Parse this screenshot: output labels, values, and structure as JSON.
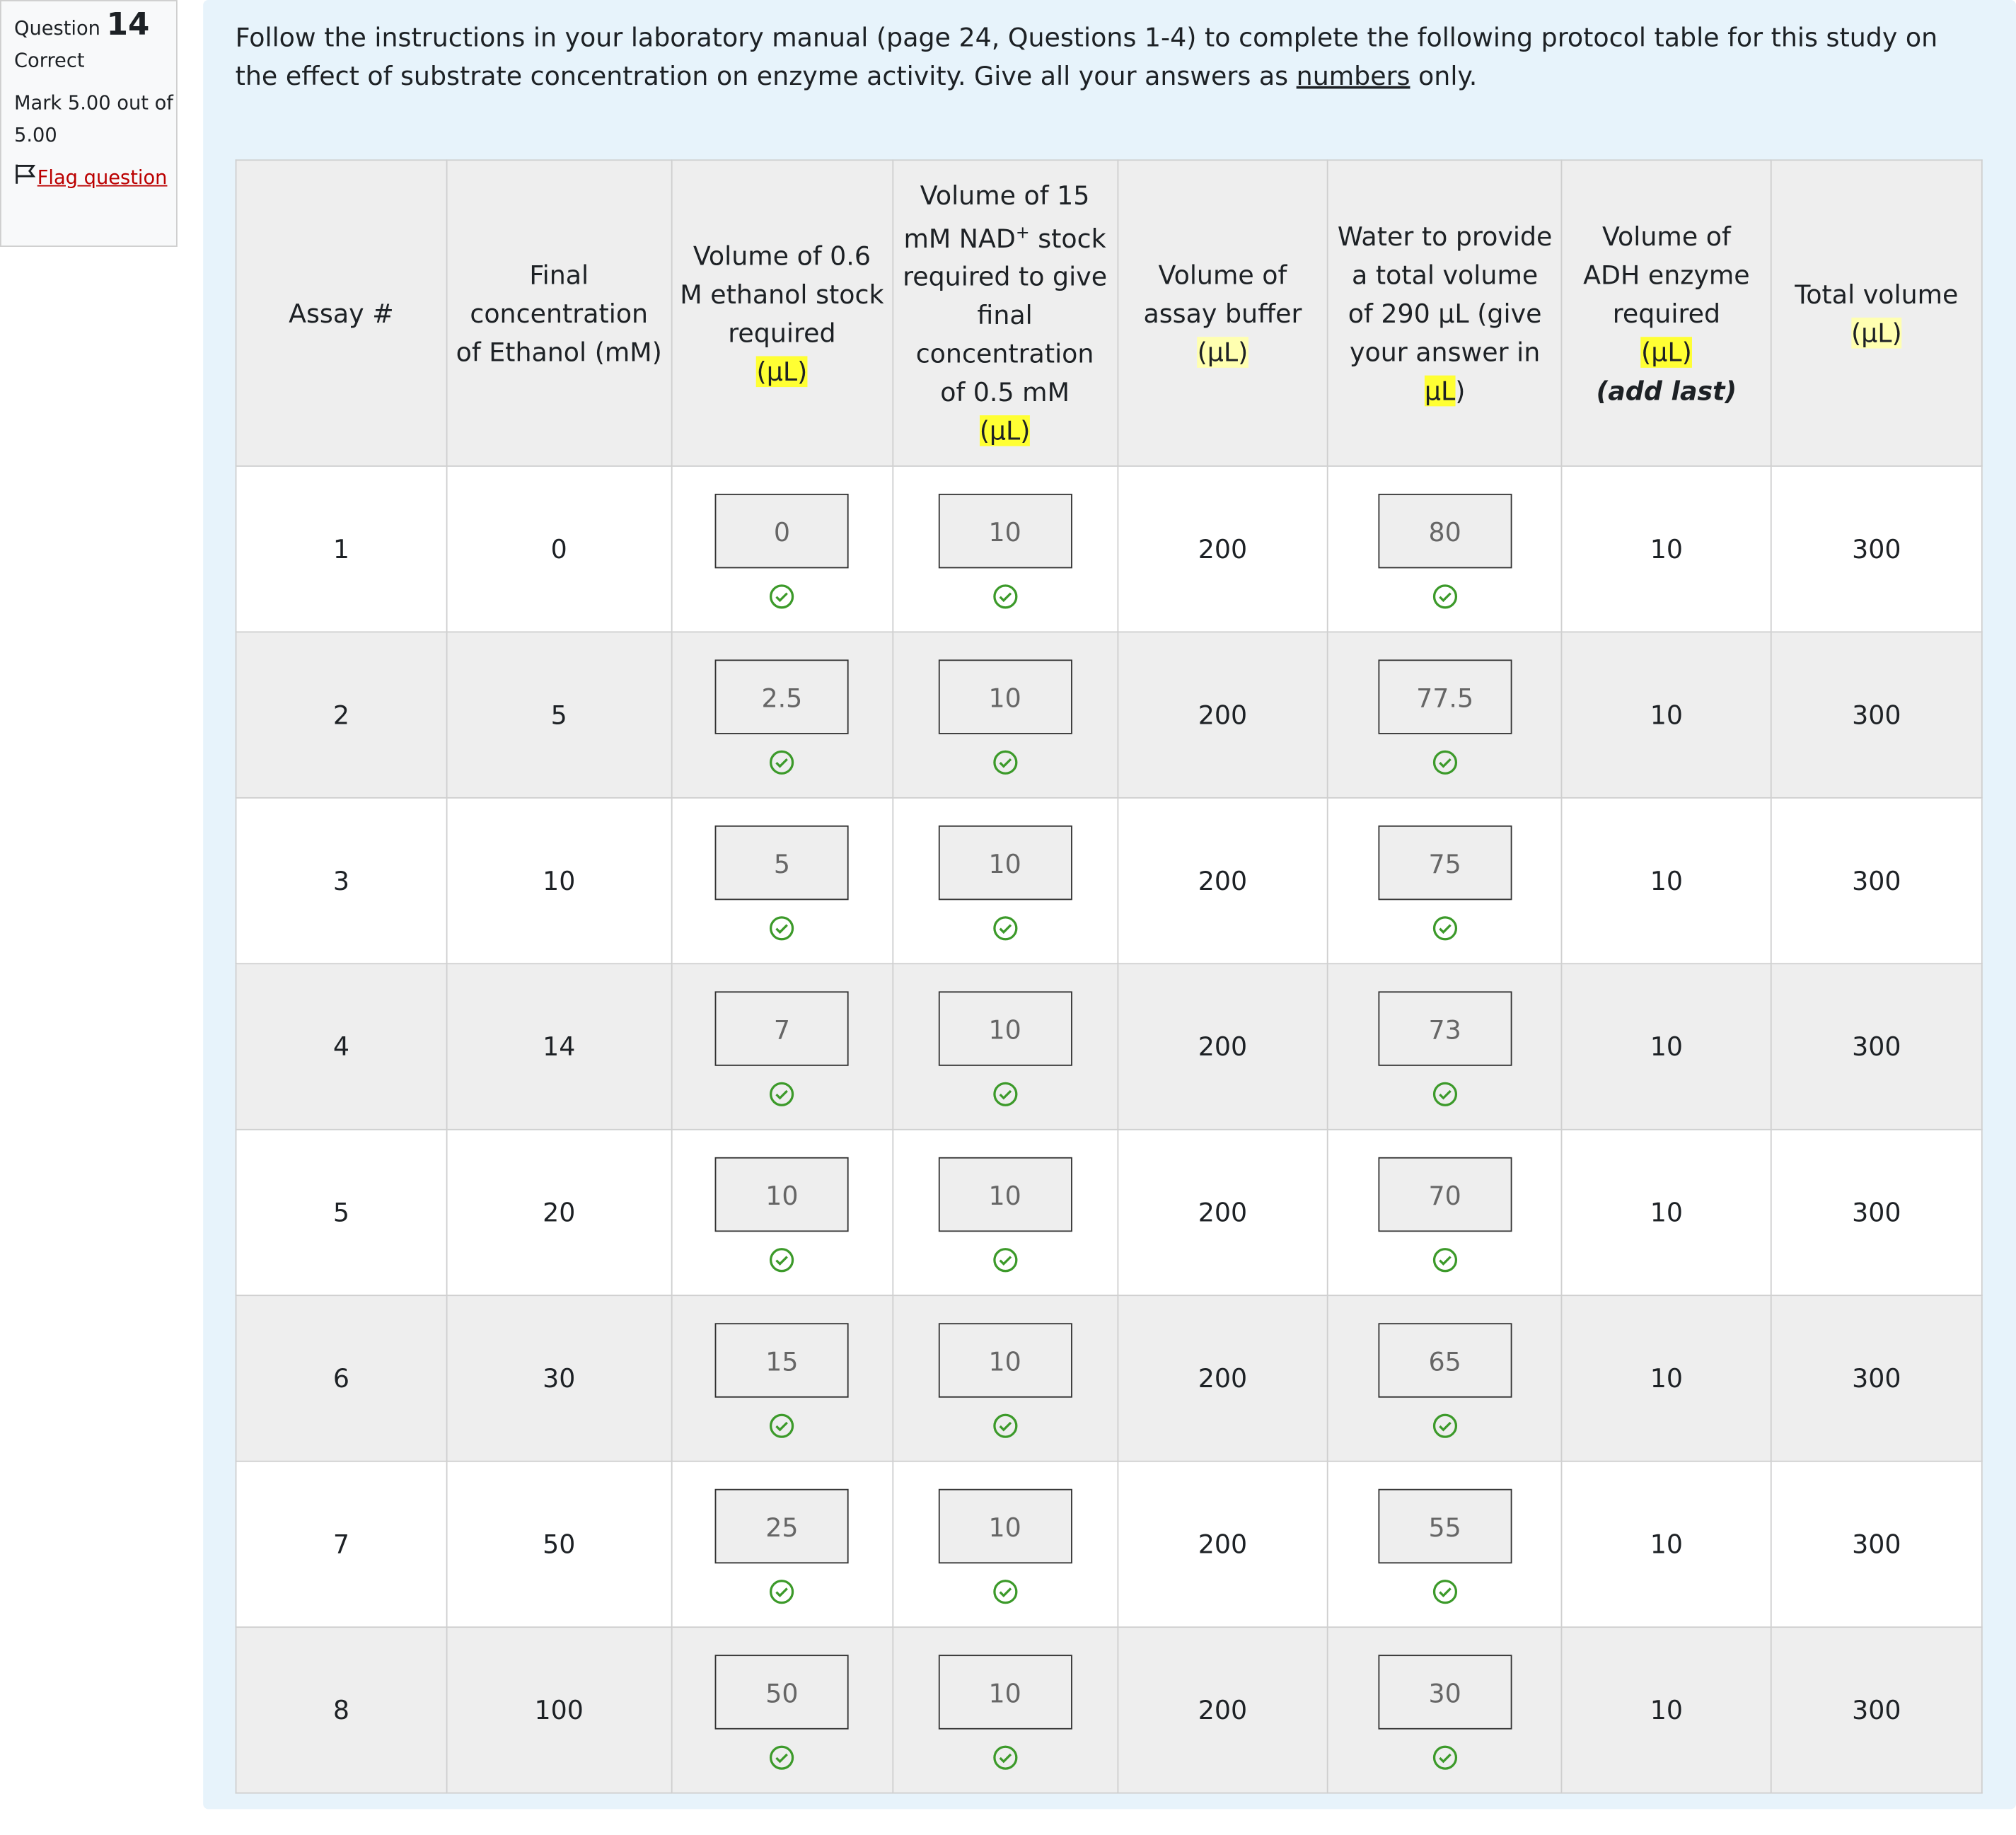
{
  "question": {
    "label": "Question",
    "number": "14",
    "status": "Correct",
    "mark": "Mark 5.00 out of 5.00",
    "flag": "Flag question"
  },
  "instructions": {
    "before": "Follow the instructions in your laboratory manual (page 24, Questions 1-4)  to complete the following protocol table for this study on the effect of substrate concentration on enzyme activity. Give all your answers as ",
    "underlined": "numbers",
    "after": " only."
  },
  "table": {
    "headers": [
      {
        "text": "Assay #"
      },
      {
        "text": "Final concentration of Ethanol (mM)"
      },
      {
        "text": "Volume of 0.6 M ethanol stock required",
        "unit": "(μL)"
      },
      {
        "text": "Volume of 15 mM NAD",
        "sup": "+",
        "rest": "stock required to give final concentration of 0.5 mM",
        "unit": "(μL)"
      },
      {
        "text": "Volume of assay buffer",
        "unit": "(μL)"
      },
      {
        "text": "Water to provide a total volume of 290 μL (give your answer in ",
        "unit": "μL",
        "rest": ")"
      },
      {
        "text": "Volume of ADH enzyme required",
        "unit": "(μL)",
        "note": "(add last)"
      },
      {
        "text": "Total volume",
        "unit": "(μL)"
      }
    ],
    "rows": [
      [
        1,
        0,
        0,
        10,
        200,
        80,
        10,
        300
      ],
      [
        2,
        5,
        2.5,
        10,
        200,
        77.5,
        10,
        300
      ],
      [
        3,
        10,
        5,
        10,
        200,
        75,
        10,
        300
      ],
      [
        4,
        14,
        7,
        10,
        200,
        73,
        10,
        300
      ],
      [
        5,
        20,
        10,
        10,
        200,
        70,
        10,
        300
      ],
      [
        6,
        30,
        15,
        10,
        200,
        65,
        10,
        300
      ],
      [
        7,
        50,
        25,
        10,
        200,
        55,
        10,
        300
      ],
      [
        8,
        100,
        50,
        10,
        200,
        30,
        10,
        300
      ]
    ],
    "input_columns": [
      2,
      3,
      5
    ]
  }
}
